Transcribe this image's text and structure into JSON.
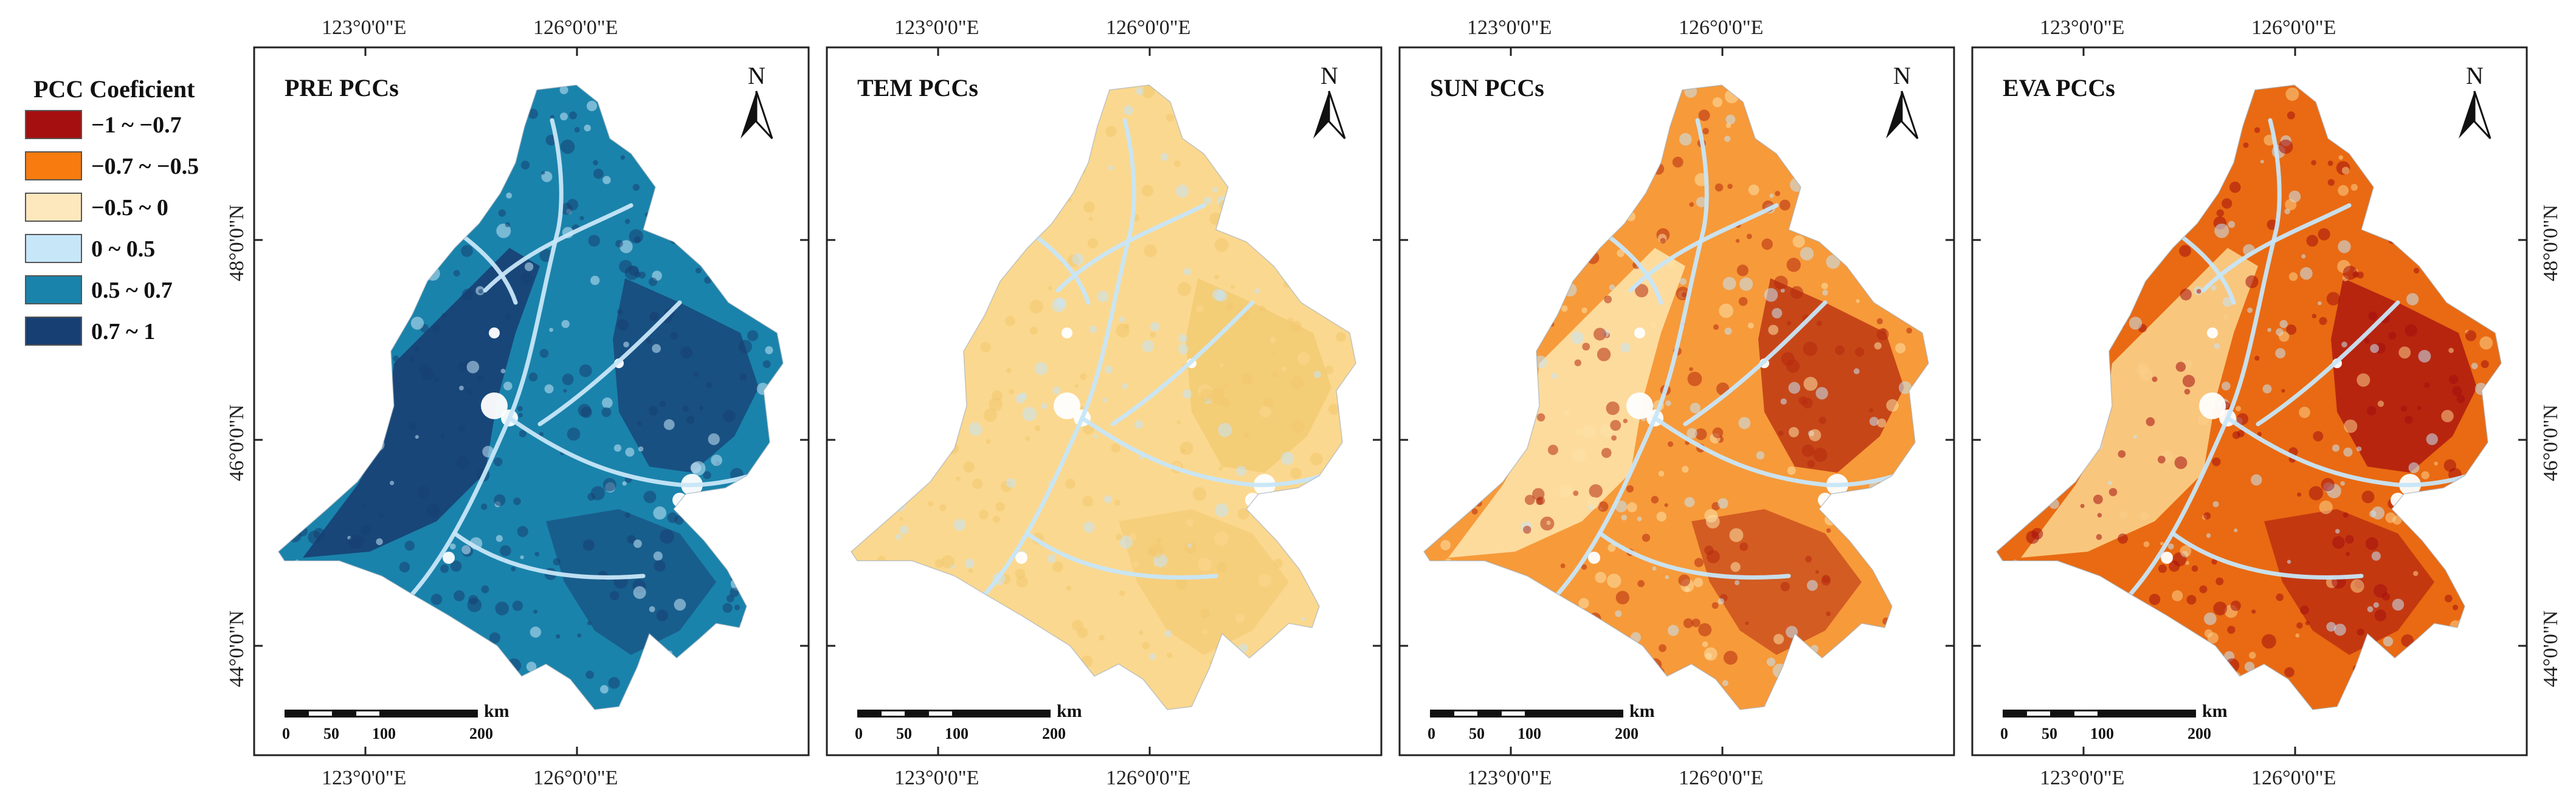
{
  "legend": {
    "title": "PCC Coeficient",
    "classes": [
      {
        "label": "−1 ~ −0.7",
        "color": "#a50f0f"
      },
      {
        "label": "−0.7 ~ −0.5",
        "color": "#f77b0e"
      },
      {
        "label": "−0.5 ~ 0",
        "color": "#fde8bd"
      },
      {
        "label": "0 ~ 0.5",
        "color": "#c7e6f8"
      },
      {
        "label": "0.5 ~ 0.7",
        "color": "#1a83ab"
      },
      {
        "label": "0.7 ~ 1",
        "color": "#183f73"
      }
    ]
  },
  "axes": {
    "lon_labels": [
      "123°0'0\"E",
      "126°0'0\"E"
    ],
    "lat_labels": [
      "48°0'0\"N",
      "46°0'0\"N",
      "44°0'0\"N"
    ]
  },
  "scale_bar": {
    "ticks": [
      "0",
      "50",
      "100",
      "200"
    ],
    "unit": "km"
  },
  "north_arrow": {
    "letter": "N"
  },
  "panels": [
    {
      "title": "PRE PCCs",
      "fill": "#1a83ab",
      "region2": "#183f73",
      "river": "#c7e6f8",
      "patch": "#183f73"
    },
    {
      "title": "TEM PCCs",
      "fill": "#fbd88f",
      "region2": "#fbd88f",
      "river": "#c7e6f8",
      "patch": "#f2c96f"
    },
    {
      "title": "SUN PCCs",
      "fill": "#f79a3a",
      "region2": "#fde2a8",
      "river": "#c7e6f8",
      "patch": "#b62a0e"
    },
    {
      "title": "EVA PCCs",
      "fill": "#e96a12",
      "region2": "#fbd08a",
      "river": "#c7e6f8",
      "patch": "#a50f0f"
    }
  ]
}
